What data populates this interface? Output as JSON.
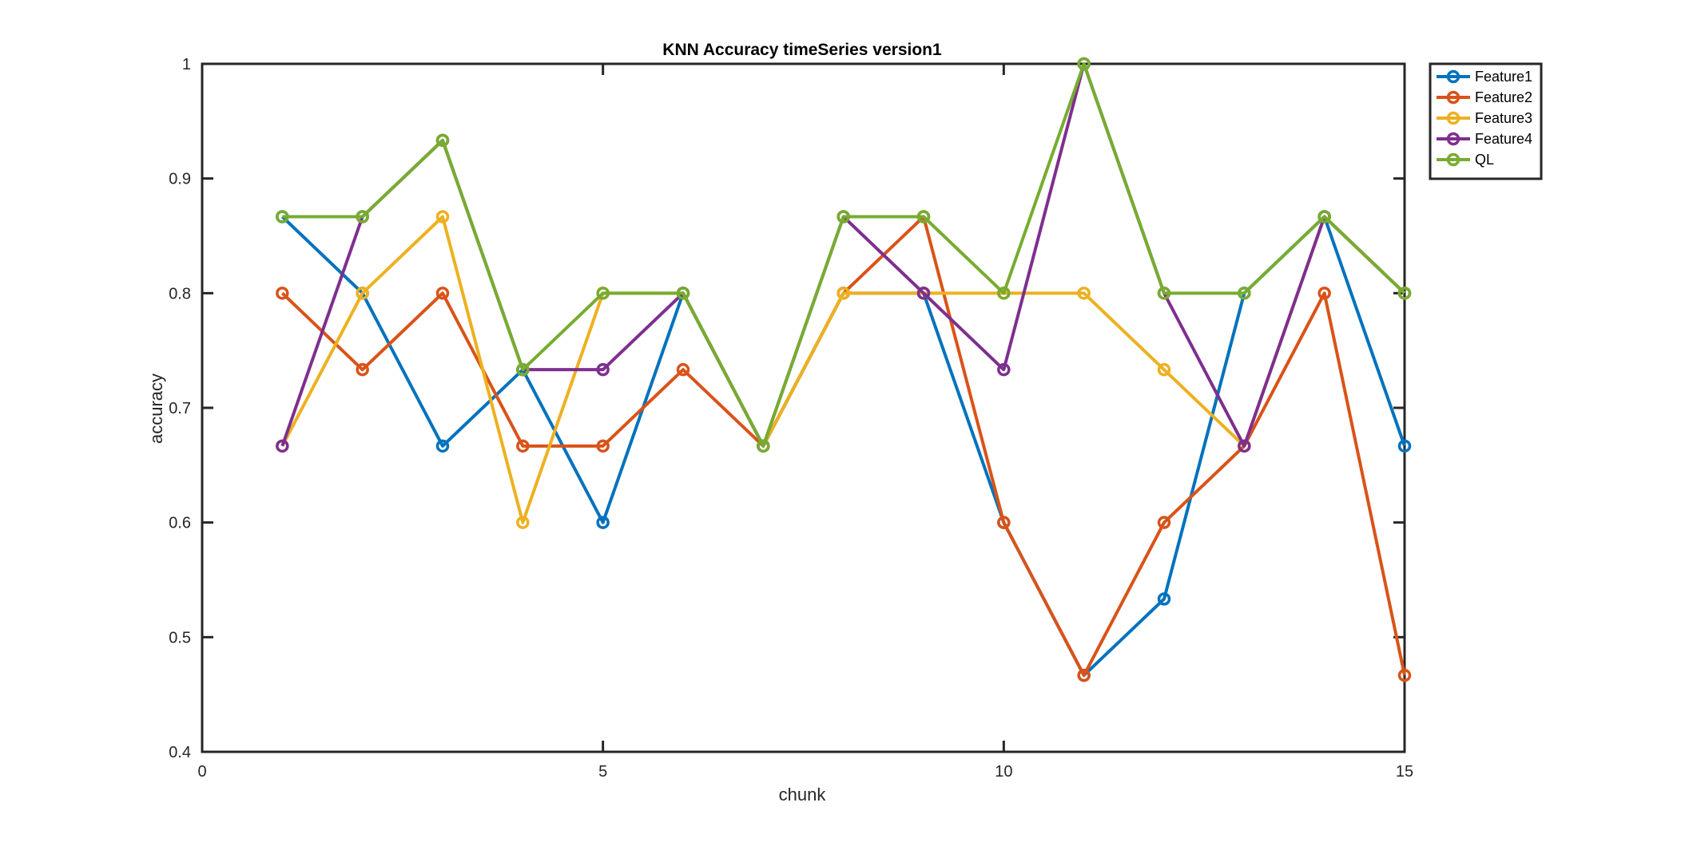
{
  "chart_data": {
    "type": "line",
    "title": "KNN Accuracy timeSeries version1",
    "xlabel": "chunk",
    "ylabel": "accuracy",
    "xlim": [
      0,
      15
    ],
    "ylim": [
      0.4,
      1
    ],
    "xticks": [
      0,
      5,
      10,
      15
    ],
    "yticks": [
      0.4,
      0.5,
      0.6,
      0.7,
      0.8,
      0.9,
      1
    ],
    "xtick_labels": [
      "0",
      "5",
      "10",
      "15"
    ],
    "ytick_labels": [
      "0.4",
      "0.5",
      "0.6",
      "0.7",
      "0.8",
      "0.9",
      "1"
    ],
    "grid": false,
    "legend_position": "outside top-right",
    "marker": "circle",
    "x": [
      1,
      2,
      3,
      4,
      5,
      6,
      7,
      8,
      9,
      10,
      11,
      12,
      13,
      14,
      15
    ],
    "series": [
      {
        "name": "Feature1",
        "color": "#0072BD",
        "values": [
          0.8667,
          0.8,
          0.6667,
          0.7333,
          0.6,
          0.8,
          0.6667,
          0.8,
          0.8,
          0.6,
          0.4667,
          0.5333,
          0.8,
          0.8667,
          0.6667
        ]
      },
      {
        "name": "Feature2",
        "color": "#D95319",
        "values": [
          0.8,
          0.7333,
          0.8,
          0.6667,
          0.6667,
          0.7333,
          0.6667,
          0.8,
          0.8667,
          0.6,
          0.4667,
          0.6,
          0.6667,
          0.8,
          0.4667
        ]
      },
      {
        "name": "Feature3",
        "color": "#EDB120",
        "values": [
          0.6667,
          0.8,
          0.8667,
          0.6,
          0.8,
          0.8,
          0.6667,
          0.8,
          0.8,
          0.8,
          0.8,
          0.7333,
          0.6667,
          0.8667,
          0.8
        ]
      },
      {
        "name": "Feature4",
        "color": "#7E2F8E",
        "values": [
          0.6667,
          0.8667,
          0.9333,
          0.7333,
          0.7333,
          0.8,
          0.6667,
          0.8667,
          0.8,
          0.7333,
          1.0,
          0.8,
          0.6667,
          0.8667,
          0.8
        ]
      },
      {
        "name": "QL",
        "color": "#77AC30",
        "values": [
          0.8667,
          0.8667,
          0.9333,
          0.7333,
          0.8,
          0.8,
          0.6667,
          0.8667,
          0.8667,
          0.8,
          1.0,
          0.8,
          0.8,
          0.8667,
          0.8
        ]
      }
    ]
  }
}
